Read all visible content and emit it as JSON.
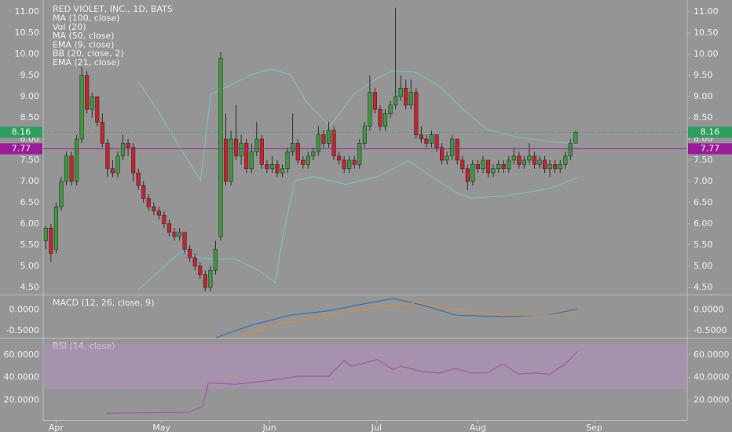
{
  "chart_data": [
    {
      "type": "candlestick",
      "title": "RED VIOLET, INC., 1D, BATS",
      "indicators": [
        "MA (100, close)",
        "Vol (20)",
        "MA (50, close)",
        "EMA (9, close)",
        "BB (20, close, 2)",
        "EMA (21, close)"
      ],
      "xlim": [
        -0.5,
        124.7
      ],
      "xticks": [
        {
          "value": 2,
          "label": "Apr"
        },
        {
          "value": 22.5,
          "label": "May"
        },
        {
          "value": 43.5,
          "label": "Jun"
        },
        {
          "value": 64.3,
          "label": "Jul"
        },
        {
          "value": 84,
          "label": "Aug"
        },
        {
          "value": 106.6,
          "label": "Sep"
        }
      ],
      "ylim": [
        4.33,
        11.28
      ],
      "yticks": [
        {
          "value": 4.5,
          "label": "4.50"
        },
        {
          "value": 5,
          "label": "5.00"
        },
        {
          "value": 5.5,
          "label": "5.50"
        },
        {
          "value": 6,
          "label": "6.00"
        },
        {
          "value": 6.5,
          "label": "6.50"
        },
        {
          "value": 7,
          "label": "7.00"
        },
        {
          "value": 7.5,
          "label": "7.50"
        },
        {
          "value": 8,
          "label": "8.00"
        },
        {
          "value": 8.5,
          "label": "8.50"
        },
        {
          "value": 9,
          "label": "9.00"
        },
        {
          "value": 9.5,
          "label": "9.50"
        },
        {
          "value": 10,
          "label": "10.00"
        },
        {
          "value": 10.5,
          "label": "10.50"
        },
        {
          "value": 11,
          "label": "11.00"
        }
      ],
      "colors": {
        "up": "#3c9a3c",
        "down": "#c8232c"
      },
      "candles": [
        [
          5.6,
          5.95,
          5.4,
          5.9
        ],
        [
          5.9,
          6.0,
          5.1,
          5.3
        ],
        [
          5.4,
          6.5,
          5.3,
          6.4
        ],
        [
          6.4,
          7.1,
          6.3,
          7.0
        ],
        [
          7.0,
          7.7,
          6.9,
          7.6
        ],
        [
          7.6,
          7.7,
          6.9,
          7.0
        ],
        [
          7.0,
          8.1,
          6.9,
          8.0
        ],
        [
          8.0,
          9.7,
          7.9,
          9.5
        ],
        [
          9.5,
          9.6,
          8.6,
          8.7
        ],
        [
          8.7,
          9.1,
          8.5,
          9.0
        ],
        [
          9.0,
          9.0,
          8.3,
          8.4
        ],
        [
          8.4,
          8.6,
          7.8,
          7.9
        ],
        [
          7.9,
          8.0,
          7.1,
          7.3
        ],
        [
          7.3,
          7.5,
          7.1,
          7.2
        ],
        [
          7.2,
          7.7,
          7.1,
          7.6
        ],
        [
          7.6,
          8.1,
          7.5,
          7.9
        ],
        [
          7.9,
          8.0,
          7.6,
          7.8
        ],
        [
          7.8,
          7.9,
          7.0,
          7.2
        ],
        [
          7.2,
          7.3,
          6.8,
          6.9
        ],
        [
          6.9,
          7.0,
          6.5,
          6.6
        ],
        [
          6.6,
          6.7,
          6.3,
          6.4
        ],
        [
          6.4,
          6.5,
          6.2,
          6.3
        ],
        [
          6.3,
          6.4,
          6.1,
          6.2
        ],
        [
          6.2,
          6.3,
          5.9,
          6.0
        ],
        [
          6.0,
          6.1,
          5.7,
          5.8
        ],
        [
          5.8,
          5.9,
          5.6,
          5.7
        ],
        [
          5.7,
          5.9,
          5.6,
          5.8
        ],
        [
          5.8,
          5.8,
          5.3,
          5.4
        ],
        [
          5.4,
          5.5,
          5.1,
          5.2
        ],
        [
          5.2,
          5.3,
          4.9,
          5.0
        ],
        [
          5.0,
          5.1,
          4.7,
          4.8
        ],
        [
          4.8,
          4.9,
          4.4,
          4.5
        ],
        [
          4.5,
          5.0,
          4.4,
          4.9
        ],
        [
          4.9,
          5.6,
          4.8,
          5.4
        ],
        [
          5.7,
          10.05,
          5.6,
          9.9
        ],
        [
          8.0,
          8.6,
          6.9,
          7.0
        ],
        [
          7.0,
          8.2,
          6.9,
          8.0
        ],
        [
          8.0,
          8.8,
          7.5,
          7.6
        ],
        [
          7.6,
          8.1,
          7.4,
          7.9
        ],
        [
          7.9,
          8.0,
          7.2,
          7.3
        ],
        [
          7.3,
          7.9,
          7.2,
          7.7
        ],
        [
          7.7,
          8.4,
          7.6,
          8.0
        ],
        [
          8.0,
          8.1,
          7.3,
          7.4
        ],
        [
          7.4,
          7.5,
          7.2,
          7.3
        ],
        [
          7.3,
          7.6,
          7.2,
          7.4
        ],
        [
          7.4,
          7.5,
          7.1,
          7.2
        ],
        [
          7.2,
          7.4,
          7.1,
          7.3
        ],
        [
          7.3,
          7.8,
          7.2,
          7.7
        ],
        [
          7.7,
          8.6,
          7.6,
          7.9
        ],
        [
          7.9,
          8.0,
          7.4,
          7.5
        ],
        [
          7.5,
          7.6,
          7.3,
          7.4
        ],
        [
          7.4,
          7.7,
          7.3,
          7.6
        ],
        [
          7.6,
          7.8,
          7.5,
          7.7
        ],
        [
          7.7,
          8.3,
          7.6,
          8.1
        ],
        [
          8.1,
          8.2,
          7.8,
          7.9
        ],
        [
          7.9,
          8.4,
          7.8,
          8.2
        ],
        [
          8.2,
          8.3,
          7.5,
          7.6
        ],
        [
          7.6,
          7.7,
          7.4,
          7.5
        ],
        [
          7.5,
          7.6,
          7.2,
          7.3
        ],
        [
          7.3,
          7.6,
          7.2,
          7.5
        ],
        [
          7.5,
          7.6,
          7.3,
          7.4
        ],
        [
          7.4,
          8.0,
          7.3,
          7.9
        ],
        [
          7.9,
          8.4,
          7.8,
          8.3
        ],
        [
          8.3,
          9.5,
          8.2,
          9.1
        ],
        [
          9.1,
          9.2,
          8.6,
          8.7
        ],
        [
          8.7,
          8.8,
          8.2,
          8.3
        ],
        [
          8.3,
          8.7,
          8.2,
          8.6
        ],
        [
          8.6,
          8.9,
          8.5,
          8.8
        ],
        [
          8.8,
          11.1,
          8.7,
          9.0
        ],
        [
          9.0,
          9.5,
          8.9,
          9.2
        ],
        [
          9.2,
          9.4,
          8.7,
          8.8
        ],
        [
          8.8,
          9.4,
          8.7,
          9.1
        ],
        [
          9.1,
          9.2,
          8.0,
          8.1
        ],
        [
          8.1,
          8.3,
          7.9,
          8.0
        ],
        [
          8.0,
          8.1,
          7.8,
          7.9
        ],
        [
          7.9,
          8.2,
          7.8,
          8.1
        ],
        [
          8.1,
          8.1,
          7.7,
          7.8
        ],
        [
          7.8,
          7.9,
          7.4,
          7.5
        ],
        [
          7.5,
          7.7,
          7.4,
          7.6
        ],
        [
          7.6,
          8.1,
          7.5,
          8.0
        ],
        [
          8.0,
          8.0,
          7.4,
          7.5
        ],
        [
          7.5,
          7.6,
          7.2,
          7.3
        ],
        [
          7.3,
          7.4,
          6.8,
          7.0
        ],
        [
          7.0,
          7.5,
          6.9,
          7.4
        ],
        [
          7.4,
          7.5,
          7.2,
          7.3
        ],
        [
          7.3,
          7.6,
          7.2,
          7.5
        ],
        [
          7.5,
          7.5,
          7.1,
          7.2
        ],
        [
          7.2,
          7.4,
          7.1,
          7.3
        ],
        [
          7.3,
          7.5,
          7.2,
          7.4
        ],
        [
          7.4,
          7.5,
          7.2,
          7.3
        ],
        [
          7.3,
          7.6,
          7.2,
          7.5
        ],
        [
          7.5,
          7.8,
          7.4,
          7.6
        ],
        [
          7.6,
          7.7,
          7.3,
          7.4
        ],
        [
          7.4,
          7.6,
          7.3,
          7.5
        ],
        [
          7.5,
          7.9,
          7.4,
          7.6
        ],
        [
          7.6,
          7.7,
          7.3,
          7.4
        ],
        [
          7.4,
          7.6,
          7.3,
          7.5
        ],
        [
          7.5,
          7.6,
          7.2,
          7.3
        ],
        [
          7.3,
          7.5,
          7.1,
          7.4
        ],
        [
          7.4,
          7.5,
          7.2,
          7.3
        ],
        [
          7.3,
          7.5,
          7.2,
          7.4
        ],
        [
          7.4,
          7.7,
          7.3,
          7.6
        ],
        [
          7.6,
          8.0,
          7.5,
          7.9
        ],
        [
          7.9,
          8.2,
          7.9,
          8.16
        ]
      ],
      "series": [
        {
          "color": "#7cc0bd",
          "x": [
            17.9,
            21.7,
            26.3,
            30.1,
            32.1,
            35.4,
            40,
            43.8,
            47.6,
            50.7,
            55.3,
            59.9,
            64.4,
            67.5,
            72.1,
            76.6,
            81.2,
            85.8,
            91.9,
            98,
            103.4
          ],
          "values": [
            9.37,
            8.69,
            7.76,
            7.02,
            9.06,
            9.24,
            9.52,
            9.65,
            9.52,
            8.87,
            8.31,
            9.06,
            9.43,
            9.61,
            9.57,
            9.24,
            8.69,
            8.22,
            8.04,
            7.94,
            7.89
          ]
        },
        {
          "color": "#7cc0bd",
          "x": [
            17.9,
            26.3,
            30.8,
            36.9,
            41.5,
            44.6,
            46.1,
            48.4,
            52.2,
            58.3,
            64.4,
            70.5,
            75.1,
            79.7,
            82.7,
            88.9,
            98,
            103.4
          ],
          "values": [
            4.43,
            5.35,
            5.17,
            5.17,
            4.89,
            4.61,
            5.72,
            7.02,
            7.11,
            6.93,
            7.11,
            7.48,
            7.11,
            6.74,
            6.61,
            6.65,
            6.83,
            7.09
          ]
        }
      ],
      "price_lines": [
        {
          "value": 8.16,
          "color": "#2e9e5b"
        },
        {
          "value": 7.77,
          "color": "#9b1c9b"
        }
      ]
    },
    {
      "type": "line",
      "title": "MACD (12, 26, close, 9)",
      "ylim": [
        -0.673,
        0.346
      ],
      "yticks": [
        {
          "value": 0,
          "label": "0.0000"
        },
        {
          "value": -0.5,
          "label": "-0.5000"
        }
      ],
      "series": [
        {
          "color": "#2a6fb8",
          "x": [
            33.1,
            40,
            47.6,
            55.3,
            61.4,
            67.5,
            73.6,
            79.7,
            88.9,
            98,
            103.4
          ],
          "values": [
            -0.67,
            -0.37,
            -0.13,
            -0.02,
            0.13,
            0.27,
            0.1,
            -0.13,
            -0.17,
            -0.12,
            0.02
          ]
        },
        {
          "color": "#e08a3a",
          "x": [
            37,
            46,
            55.3,
            64.4,
            72,
            79.7,
            88.9,
            98,
            103.4
          ],
          "values": [
            -0.67,
            -0.33,
            -0.13,
            0.06,
            0.17,
            0,
            -0.13,
            -0.13,
            -0.06
          ]
        }
      ]
    },
    {
      "type": "line",
      "title": "RSI (14, close)",
      "ylim": [
        2.07,
        74.5
      ],
      "yticks": [
        {
          "value": 20,
          "label": "20.0000"
        },
        {
          "value": 40,
          "label": "40.0000"
        },
        {
          "value": 60,
          "label": "60.0000"
        }
      ],
      "band": [
        30,
        70
      ],
      "band_color": "#b58fc0",
      "series": [
        {
          "color": "#a454ad",
          "x": [
            11.8,
            27.8,
            30.5,
            31.6,
            37,
            43,
            49,
            55,
            58,
            59.4,
            61.4,
            64.4,
            67.5,
            69,
            73.6,
            76.6,
            79.7,
            82.7,
            85.8,
            88.9,
            91.9,
            95,
            98,
            101,
            103.4
          ],
          "values": [
            8.3,
            9,
            14.5,
            35,
            34,
            37,
            41,
            41,
            55,
            50,
            52,
            56,
            47,
            50,
            45,
            44,
            48,
            44,
            44,
            52,
            43,
            44,
            43,
            52,
            63
          ]
        }
      ]
    }
  ]
}
